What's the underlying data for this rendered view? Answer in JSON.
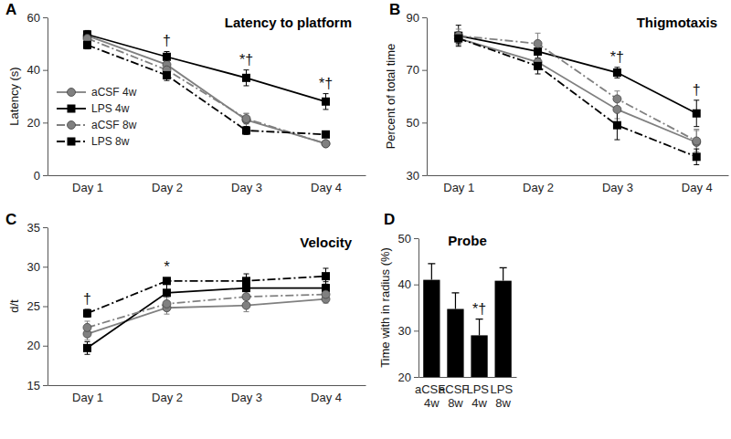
{
  "chart_data": [
    {
      "type": "line",
      "panel": "A",
      "title": "Latency to platform",
      "y_label": "Latency (s)",
      "categories": [
        "Day 1",
        "Day 2",
        "Day 3",
        "Day 4"
      ],
      "ylim": [
        0,
        60
      ],
      "yticks": [
        0,
        20,
        40,
        60
      ],
      "legend": "lower left",
      "series": [
        {
          "name": "aCSF 4w",
          "color": "#808080",
          "marker": "circle",
          "line_style": "solid",
          "values": [
            53,
            42,
            21,
            12
          ],
          "errors": [
            1.5,
            2,
            2.5,
            1
          ]
        },
        {
          "name": "LPS 4w",
          "color": "#000000",
          "marker": "square",
          "line_style": "solid",
          "values": [
            53.5,
            45,
            37,
            28
          ],
          "errors": [
            1.5,
            2,
            3,
            3
          ]
        },
        {
          "name": "aCSF 8w",
          "color": "#808080",
          "marker": "circle",
          "line_style": "dashdot",
          "values": [
            52,
            40,
            21.5,
            12
          ],
          "errors": [
            1.5,
            2,
            2,
            1
          ]
        },
        {
          "name": "LPS 8w",
          "color": "#000000",
          "marker": "square",
          "line_style": "dashdot",
          "values": [
            49.5,
            38,
            17,
            15.5
          ],
          "errors": [
            1.5,
            2,
            1.5,
            1
          ]
        }
      ],
      "annotations": [
        {
          "category": "Day 2",
          "text": "†"
        },
        {
          "category": "Day 3",
          "text": "*†"
        },
        {
          "category": "Day 4",
          "text": "*†"
        }
      ]
    },
    {
      "type": "line",
      "panel": "B",
      "title": "Thigmotaxis",
      "y_label": "Percent of total time",
      "categories": [
        "Day 1",
        "Day 2",
        "Day 3",
        "Day 4"
      ],
      "ylim": [
        30,
        90
      ],
      "yticks": [
        30,
        50,
        70,
        90
      ],
      "series": [
        {
          "name": "aCSF 4w",
          "color": "#808080",
          "marker": "circle",
          "line_style": "solid",
          "values": [
            82,
            73,
            55,
            42.5
          ],
          "errors": [
            2.5,
            3,
            3.5,
            5
          ]
        },
        {
          "name": "LPS 4w",
          "color": "#000000",
          "marker": "square",
          "line_style": "solid",
          "values": [
            83,
            77,
            69,
            53.5
          ],
          "errors": [
            4,
            3,
            2,
            5
          ]
        },
        {
          "name": "aCSF 8w",
          "color": "#808080",
          "marker": "circle",
          "line_style": "dashdot",
          "values": [
            83,
            80,
            59,
            43
          ],
          "errors": [
            2.5,
            4,
            3,
            4
          ]
        },
        {
          "name": "LPS 8w",
          "color": "#000000",
          "marker": "square",
          "line_style": "dashdot",
          "values": [
            82,
            71.5,
            49,
            37
          ],
          "errors": [
            2,
            3,
            5.5,
            3
          ]
        }
      ],
      "annotations": [
        {
          "category": "Day 3",
          "text": "*†"
        },
        {
          "category": "Day 4",
          "text": "†"
        }
      ]
    },
    {
      "type": "line",
      "panel": "C",
      "title": "Velocity",
      "y_label": "d/t",
      "categories": [
        "Day 1",
        "Day 2",
        "Day 3",
        "Day 4"
      ],
      "ylim": [
        15,
        35
      ],
      "yticks": [
        15,
        20,
        25,
        30,
        35
      ],
      "series": [
        {
          "name": "aCSF 4w",
          "color": "#808080",
          "marker": "circle",
          "line_style": "solid",
          "values": [
            21.5,
            24.8,
            25.1,
            25.9
          ],
          "errors": [
            0.8,
            0.8,
            0.8,
            0.5
          ]
        },
        {
          "name": "LPS 4w",
          "color": "#000000",
          "marker": "square",
          "line_style": "solid",
          "values": [
            19.7,
            26.7,
            27.3,
            27.3
          ],
          "errors": [
            0.8,
            1.2,
            0.8,
            0.8
          ]
        },
        {
          "name": "aCSF 8w",
          "color": "#808080",
          "marker": "circle",
          "line_style": "dashdot",
          "values": [
            22.3,
            25.3,
            26.2,
            26.5
          ],
          "errors": [
            0.8,
            0.8,
            0.8,
            0.8
          ]
        },
        {
          "name": "LPS 8w",
          "color": "#000000",
          "marker": "square",
          "line_style": "dashdot",
          "values": [
            24.1,
            28.2,
            28.2,
            28.8
          ],
          "errors": [
            0.5,
            0.4,
            0.9,
            1.0
          ]
        }
      ],
      "annotations": [
        {
          "category": "Day 1",
          "text": "†"
        },
        {
          "category": "Day 2",
          "text": "*"
        }
      ]
    },
    {
      "type": "bar",
      "panel": "D",
      "title": "Probe",
      "y_label": "Time with in radius (%)",
      "categories": [
        "aCSF 4w",
        "aCSF 8w",
        "LPS 4w",
        "LPS 8w"
      ],
      "values": [
        41,
        34.7,
        29,
        40.8
      ],
      "errors": [
        3.5,
        3.5,
        3.5,
        2.8
      ],
      "color": "#000000",
      "ylim": [
        20,
        50
      ],
      "yticks": [
        20,
        30,
        40,
        50
      ],
      "annotations": [
        {
          "category": "LPS 4w",
          "text": "*†"
        }
      ]
    }
  ]
}
